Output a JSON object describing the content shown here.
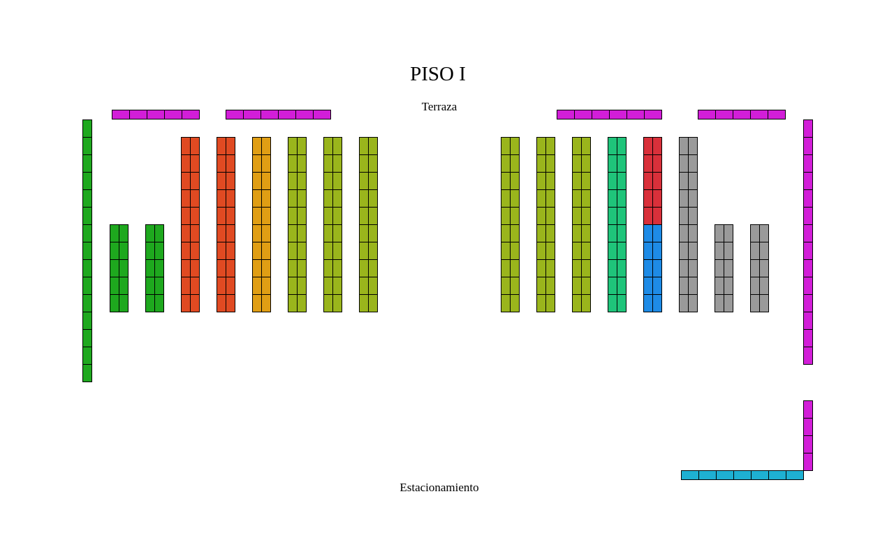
{
  "title": "PISO I",
  "labels": {
    "top": "Terraza",
    "bottom": "Estacionamiento"
  },
  "colors": {
    "magenta": "#d21ed8",
    "green": "#1ea81e",
    "orange_red": "#e04a22",
    "amber": "#e09e14",
    "olive": "#9ab51c",
    "teal": "#1fc47a",
    "red": "#d9303a",
    "blue": "#1e8be6",
    "gray": "#9a9a9a",
    "cyan": "#1eb0d2"
  },
  "sections": [
    {
      "id": "terraza-left-1",
      "color": "magenta",
      "orientation": "horizontal",
      "seats": 5
    },
    {
      "id": "terraza-left-2",
      "color": "magenta",
      "orientation": "horizontal",
      "seats": 6
    },
    {
      "id": "terraza-right-1",
      "color": "magenta",
      "orientation": "horizontal",
      "seats": 6
    },
    {
      "id": "terraza-right-2",
      "color": "magenta",
      "orientation": "horizontal",
      "seats": 5
    },
    {
      "id": "left-wall",
      "color": "green",
      "orientation": "vertical",
      "seats": 15
    },
    {
      "id": "col-1",
      "color": "green",
      "rows": 5,
      "cols": 2
    },
    {
      "id": "col-2",
      "color": "green",
      "rows": 5,
      "cols": 2
    },
    {
      "id": "col-3",
      "color": "orange_red",
      "rows": 10,
      "cols": 2
    },
    {
      "id": "col-4",
      "color": "orange_red",
      "rows": 10,
      "cols": 2
    },
    {
      "id": "col-5",
      "color": "amber",
      "rows": 10,
      "cols": 2
    },
    {
      "id": "col-6",
      "color": "olive",
      "rows": 10,
      "cols": 2
    },
    {
      "id": "col-7",
      "color": "olive",
      "rows": 10,
      "cols": 2
    },
    {
      "id": "col-8",
      "color": "olive",
      "rows": 10,
      "cols": 2
    },
    {
      "id": "col-9",
      "color": "olive",
      "rows": 10,
      "cols": 2
    },
    {
      "id": "col-10",
      "color": "olive",
      "rows": 10,
      "cols": 2
    },
    {
      "id": "col-11",
      "color": "olive",
      "rows": 10,
      "cols": 2
    },
    {
      "id": "col-12",
      "color": "teal",
      "rows": 10,
      "cols": 2
    },
    {
      "id": "col-13-top",
      "color": "red",
      "rows": 5,
      "cols": 2
    },
    {
      "id": "col-13-bottom",
      "color": "blue",
      "rows": 5,
      "cols": 2
    },
    {
      "id": "col-14",
      "color": "gray",
      "rows": 10,
      "cols": 2
    },
    {
      "id": "col-15",
      "color": "gray",
      "rows": 5,
      "cols": 2
    },
    {
      "id": "col-16",
      "color": "gray",
      "rows": 5,
      "cols": 2
    },
    {
      "id": "right-wall-upper",
      "color": "magenta",
      "orientation": "vertical",
      "seats": 14
    },
    {
      "id": "right-wall-lower",
      "color": "magenta",
      "orientation": "vertical",
      "seats": 4
    },
    {
      "id": "estacionamiento-row",
      "color": "cyan",
      "orientation": "horizontal",
      "seats": 7
    }
  ]
}
